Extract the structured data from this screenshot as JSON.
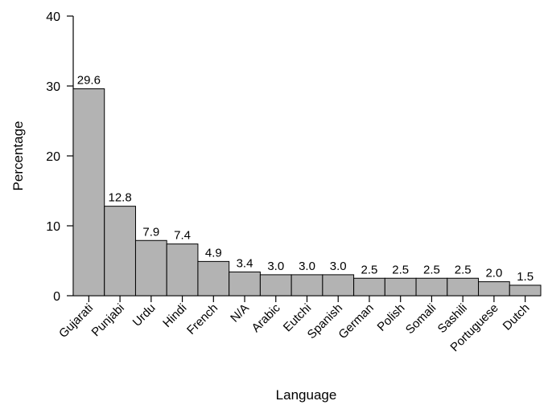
{
  "chart_data": {
    "type": "bar",
    "title": "",
    "xlabel": "Language",
    "ylabel": "Percentage",
    "ylim": [
      0,
      40
    ],
    "yticks": [
      0,
      10,
      20,
      30,
      40
    ],
    "categories": [
      "Gujarati",
      "Punjabi",
      "Urdu",
      "Hindi",
      "French",
      "N/A",
      "Arabic",
      "Eutchi",
      "Spanish",
      "German",
      "Polish",
      "Somali",
      "Sashili",
      "Portuguese",
      "Dutch"
    ],
    "values": [
      29.6,
      12.8,
      7.9,
      7.4,
      4.9,
      3.4,
      3.0,
      3.0,
      3.0,
      2.5,
      2.5,
      2.5,
      2.5,
      2.0,
      1.5
    ],
    "data_labels": [
      "29.6",
      "12.8",
      "7.9",
      "7.4",
      "4.9",
      "3.4",
      "3.0",
      "3.0",
      "3.0",
      "2.5",
      "2.5",
      "2.5",
      "2.5",
      "2.0",
      "1.5"
    ],
    "bar_color": "#b3b3b3",
    "grid": false,
    "legend": "none"
  }
}
